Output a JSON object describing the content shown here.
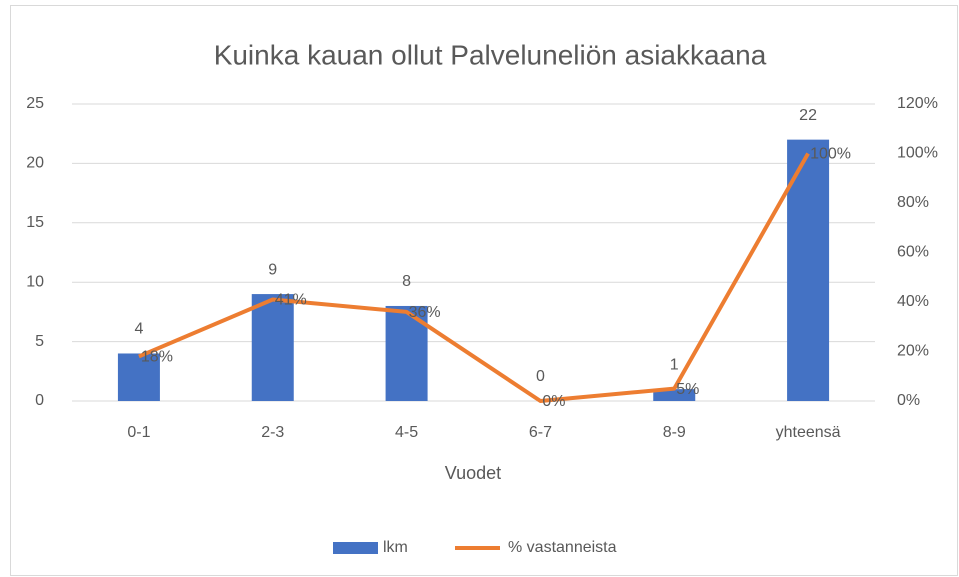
{
  "chart_data": {
    "type": "bar",
    "title": "Kuinka kauan ollut Palveluneliön asiakkaana",
    "xlabel": "Vuodet",
    "categories": [
      "0-1",
      "2-3",
      "4-5",
      "6-7",
      "8-9",
      "yhteensä"
    ],
    "series": [
      {
        "name": "lkm",
        "type": "bar",
        "color": "#4472c4",
        "values": [
          4,
          9,
          8,
          0,
          1,
          22
        ]
      },
      {
        "name": "% vastanneista",
        "type": "line",
        "axis": "y2",
        "color": "#ed7d31",
        "values": [
          18,
          41,
          36,
          0,
          5,
          100
        ],
        "value_labels": [
          "18%",
          "41%",
          "36%",
          "0%",
          "5%",
          "100%"
        ]
      }
    ],
    "ylim": [
      0,
      25
    ],
    "yticks": [
      0,
      5,
      10,
      15,
      20,
      25
    ],
    "y2lim": [
      0,
      120
    ],
    "y2ticks": [
      {
        "value": 0,
        "label": "0%"
      },
      {
        "value": 20,
        "label": "20%"
      },
      {
        "value": 40,
        "label": "40%"
      },
      {
        "value": 60,
        "label": "60%"
      },
      {
        "value": 80,
        "label": "80%"
      },
      {
        "value": 100,
        "label": "100%"
      },
      {
        "value": 120,
        "label": "120%"
      }
    ],
    "grid": true,
    "legend": "bottom"
  }
}
